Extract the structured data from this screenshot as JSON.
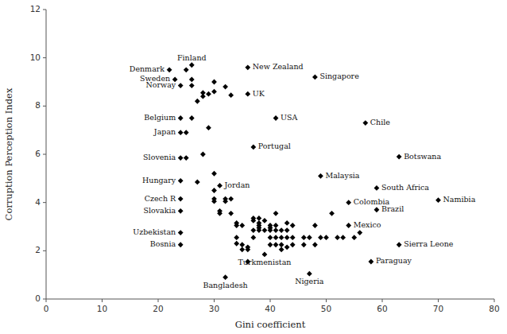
{
  "chart_data": {
    "type": "scatter",
    "title": "",
    "xlabel": "Gini coefficient",
    "ylabel": "Corruption Perception Index",
    "xlim": [
      0,
      80
    ],
    "ylim": [
      0,
      12
    ],
    "xticks": [
      0,
      10,
      20,
      30,
      40,
      50,
      60,
      70,
      80
    ],
    "yticks": [
      0,
      2,
      4,
      6,
      8,
      10,
      12
    ],
    "marker": "diamond",
    "color": "#000000",
    "grid": false,
    "x": [
      25,
      26,
      26,
      27,
      28,
      28,
      29,
      30,
      30,
      32,
      33,
      26,
      25,
      25,
      27,
      28,
      29,
      30,
      30,
      30,
      30,
      31,
      31,
      32,
      32,
      33,
      33,
      34,
      34,
      34,
      34,
      35,
      35,
      35,
      36,
      36,
      36,
      37,
      37,
      37,
      37,
      38,
      38,
      38,
      38,
      38,
      39,
      39,
      40,
      40,
      40,
      40,
      40,
      41,
      41,
      41,
      41,
      41,
      42,
      42,
      42,
      42,
      43,
      43,
      43,
      43,
      44,
      44,
      44,
      46,
      46,
      47,
      48,
      48,
      49,
      50,
      51,
      52,
      53,
      55,
      56,
      26,
      22,
      23,
      24,
      36,
      48,
      36,
      24,
      24,
      24,
      41,
      37,
      57,
      31,
      49,
      63,
      24,
      24,
      24,
      24,
      24,
      59,
      54,
      59,
      54,
      70,
      63,
      39,
      32,
      47,
      58
    ],
    "values": [
      9.5,
      9.1,
      8.85,
      8.2,
      8.4,
      8.55,
      8.5,
      8.6,
      9.0,
      8.8,
      8.45,
      7.5,
      6.9,
      5.85,
      4.85,
      6.0,
      7.1,
      4.05,
      4.15,
      4.5,
      5.2,
      3.55,
      3.65,
      4.15,
      4.05,
      3.55,
      4.15,
      2.3,
      2.55,
      3.05,
      3.15,
      2.25,
      2.05,
      3.05,
      1.55,
      2.05,
      2.15,
      2.55,
      2.85,
      3.25,
      3.35,
      2.85,
      2.95,
      3.05,
      3.15,
      3.35,
      2.85,
      3.25,
      2.25,
      2.55,
      2.85,
      2.95,
      3.05,
      2.25,
      2.55,
      2.85,
      3.05,
      3.55,
      2.05,
      2.25,
      2.55,
      2.85,
      2.15,
      2.55,
      2.85,
      3.15,
      2.25,
      2.55,
      3.05,
      2.25,
      2.55,
      2.55,
      2.25,
      3.05,
      2.55,
      2.55,
      3.55,
      2.55,
      2.55,
      2.55,
      2.75,
      9.7,
      9.5,
      9.1,
      8.85,
      9.6,
      9.2,
      8.5,
      7.5,
      6.9,
      5.85,
      7.5,
      6.3,
      7.3,
      4.7,
      5.1,
      5.9,
      4.9,
      4.15,
      3.65,
      2.75,
      2.25,
      4.6,
      4.0,
      3.7,
      3.05,
      4.1,
      2.25,
      1.85,
      0.9,
      1.05,
      1.55
    ],
    "annotations": [
      {
        "text": "Finland",
        "x": 26,
        "y": 9.7,
        "position": "top"
      },
      {
        "text": "Denmark",
        "x": 22,
        "y": 9.5,
        "position": "left"
      },
      {
        "text": "Sweden",
        "x": 23,
        "y": 9.1,
        "position": "left"
      },
      {
        "text": "Norway",
        "x": 24,
        "y": 8.85,
        "position": "left"
      },
      {
        "text": "New Zealand",
        "x": 36,
        "y": 9.6,
        "position": "right"
      },
      {
        "text": "Singapore",
        "x": 48,
        "y": 9.2,
        "position": "right"
      },
      {
        "text": "UK",
        "x": 36,
        "y": 8.5,
        "position": "right"
      },
      {
        "text": "Belgium",
        "x": 24,
        "y": 7.5,
        "position": "left"
      },
      {
        "text": "Japan",
        "x": 24,
        "y": 6.9,
        "position": "left"
      },
      {
        "text": "Slovenia",
        "x": 24,
        "y": 5.85,
        "position": "left"
      },
      {
        "text": "USA",
        "x": 41,
        "y": 7.5,
        "position": "right"
      },
      {
        "text": "Portugal",
        "x": 37,
        "y": 6.3,
        "position": "right"
      },
      {
        "text": "Chile",
        "x": 57,
        "y": 7.3,
        "position": "right"
      },
      {
        "text": "Jordan",
        "x": 31,
        "y": 4.7,
        "position": "right"
      },
      {
        "text": "Malaysia",
        "x": 49,
        "y": 5.1,
        "position": "right"
      },
      {
        "text": "Botswana",
        "x": 63,
        "y": 5.9,
        "position": "right"
      },
      {
        "text": "Hungary",
        "x": 24,
        "y": 4.9,
        "position": "left"
      },
      {
        "text": "Czech R",
        "x": 24,
        "y": 4.15,
        "position": "left"
      },
      {
        "text": "Slovakia",
        "x": 24,
        "y": 3.65,
        "position": "left"
      },
      {
        "text": "Uzbekistan",
        "x": 24,
        "y": 2.75,
        "position": "left"
      },
      {
        "text": "Bosnia",
        "x": 24,
        "y": 2.25,
        "position": "left"
      },
      {
        "text": "South Africa",
        "x": 59,
        "y": 4.6,
        "position": "right"
      },
      {
        "text": "Colombia",
        "x": 54,
        "y": 4.0,
        "position": "right"
      },
      {
        "text": "Brazil",
        "x": 59,
        "y": 3.7,
        "position": "right"
      },
      {
        "text": "Mexico",
        "x": 54,
        "y": 3.05,
        "position": "right"
      },
      {
        "text": "Namibia",
        "x": 70,
        "y": 4.1,
        "position": "right"
      },
      {
        "text": "Sierra Leone",
        "x": 63,
        "y": 2.25,
        "position": "right"
      },
      {
        "text": "Turkmenistan",
        "x": 39,
        "y": 1.85,
        "position": "bottom"
      },
      {
        "text": "Bangladesh",
        "x": 32,
        "y": 0.9,
        "position": "bottom"
      },
      {
        "text": "Nigeria",
        "x": 47,
        "y": 1.05,
        "position": "bottom"
      },
      {
        "text": "Paraguay",
        "x": 58,
        "y": 1.55,
        "position": "right"
      }
    ]
  }
}
